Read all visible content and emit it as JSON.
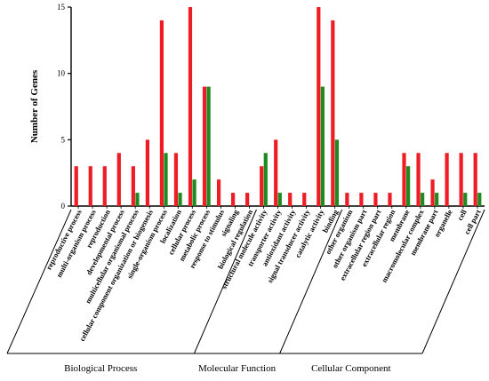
{
  "chart_data": {
    "type": "bar",
    "ylabel": "Number of Genes",
    "ylim": [
      0,
      15
    ],
    "yticks": [
      0,
      5,
      10,
      15
    ],
    "categories": [
      "reproductive process",
      "multi-organism process",
      "reproduction",
      "developmental process",
      "multicellular organismal process",
      "cellular component organization or biogenesis",
      "single-organism process",
      "localization",
      "cellular process",
      "metabolic process",
      "response to stimulus",
      "signaling",
      "biological regulation",
      "structural molecule activity",
      "transporter activity",
      "antioxidant activity",
      "signal transducer activity",
      "catalytic activity",
      "binding",
      "other organism",
      "other organism part",
      "extracellular region part",
      "extracellular region",
      "membrane",
      "macromolecular complex",
      "membrane part",
      "organelle",
      "cell",
      "cell part"
    ],
    "series": [
      {
        "color": "#ee1c24",
        "values": [
          3,
          3,
          3,
          4,
          3,
          5,
          14,
          4,
          15,
          9,
          2,
          1,
          1,
          3,
          5,
          1,
          1,
          15,
          14,
          1,
          1,
          1,
          1,
          4,
          4,
          2,
          4,
          4,
          4
        ]
      },
      {
        "color": "#1f8a1f",
        "values": [
          0,
          0,
          0,
          0,
          1,
          0,
          4,
          1,
          2,
          9,
          0,
          0,
          0,
          4,
          1,
          0,
          0,
          9,
          5,
          0,
          0,
          0,
          0,
          3,
          1,
          1,
          0,
          1,
          1
        ]
      }
    ],
    "groups": [
      {
        "label": "Biological Process",
        "start": 0,
        "end": 12
      },
      {
        "label": "Molecular Function",
        "start": 13,
        "end": 18
      },
      {
        "label": "Cellular Component",
        "start": 19,
        "end": 28
      }
    ]
  }
}
